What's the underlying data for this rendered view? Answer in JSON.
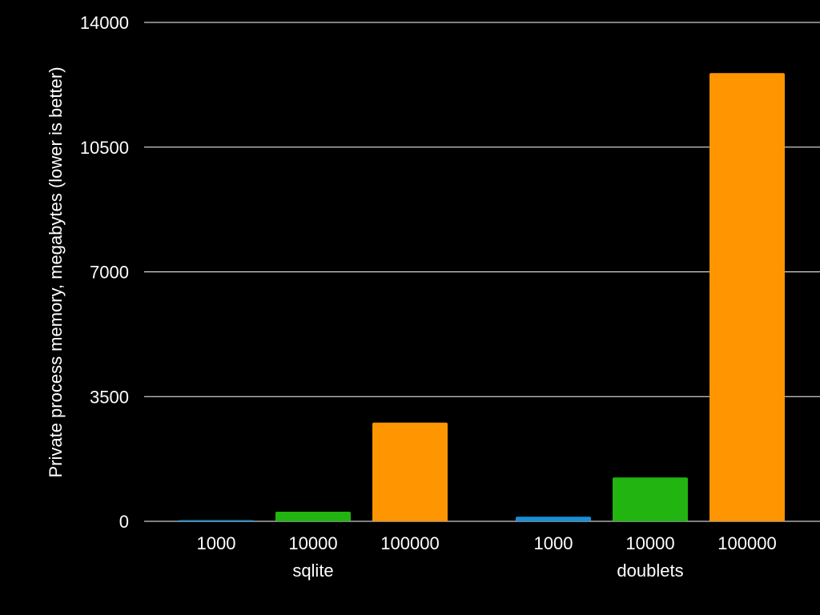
{
  "chart_data": {
    "type": "bar",
    "title": "",
    "ylabel": "Private process memory, megabytes (lower is better)",
    "xlabel": "",
    "ylim": [
      0,
      14000
    ],
    "yticks": [
      0,
      3500,
      7000,
      10500,
      14000
    ],
    "tick_labels": [
      "0",
      "3500",
      "7000",
      "10500",
      "14000"
    ],
    "grid": true,
    "groups": [
      {
        "name": "sqlite",
        "bars": [
          {
            "label": "1000",
            "value": 20,
            "color": "#1a8fd6"
          },
          {
            "label": "10000",
            "value": 270,
            "color": "#22b411"
          },
          {
            "label": "100000",
            "value": 2770,
            "color": "#ff9500"
          }
        ]
      },
      {
        "name": "doublets",
        "bars": [
          {
            "label": "1000",
            "value": 130,
            "color": "#1a8fd6"
          },
          {
            "label": "10000",
            "value": 1230,
            "color": "#22b411"
          },
          {
            "label": "100000",
            "value": 12580,
            "color": "#ff9500"
          }
        ]
      }
    ]
  }
}
